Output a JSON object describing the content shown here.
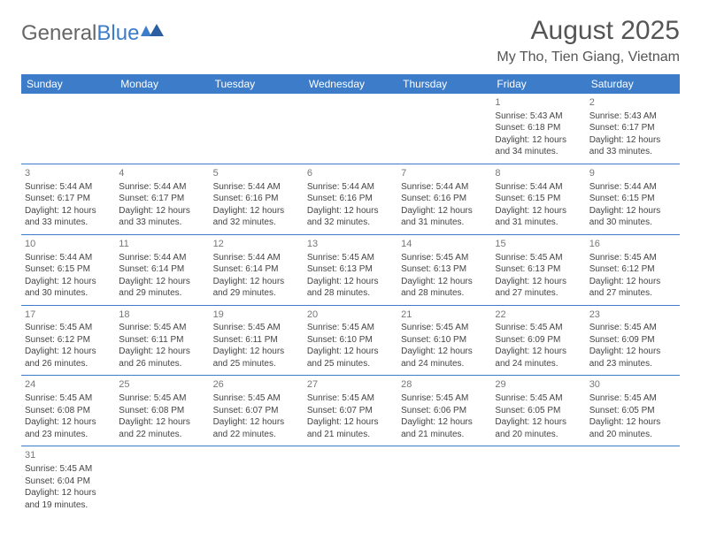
{
  "logo": {
    "text1": "General",
    "text2": "Blue"
  },
  "title": "August 2025",
  "location": "My Tho, Tien Giang, Vietnam",
  "colors": {
    "accent": "#3d7cc9",
    "text": "#444",
    "header_text": "#ffffff"
  },
  "weekdays": [
    "Sunday",
    "Monday",
    "Tuesday",
    "Wednesday",
    "Thursday",
    "Friday",
    "Saturday"
  ],
  "weeks": [
    [
      null,
      null,
      null,
      null,
      null,
      {
        "n": "1",
        "sr": "5:43 AM",
        "ss": "6:18 PM",
        "dl": "12 hours and 34 minutes."
      },
      {
        "n": "2",
        "sr": "5:43 AM",
        "ss": "6:17 PM",
        "dl": "12 hours and 33 minutes."
      }
    ],
    [
      {
        "n": "3",
        "sr": "5:44 AM",
        "ss": "6:17 PM",
        "dl": "12 hours and 33 minutes."
      },
      {
        "n": "4",
        "sr": "5:44 AM",
        "ss": "6:17 PM",
        "dl": "12 hours and 33 minutes."
      },
      {
        "n": "5",
        "sr": "5:44 AM",
        "ss": "6:16 PM",
        "dl": "12 hours and 32 minutes."
      },
      {
        "n": "6",
        "sr": "5:44 AM",
        "ss": "6:16 PM",
        "dl": "12 hours and 32 minutes."
      },
      {
        "n": "7",
        "sr": "5:44 AM",
        "ss": "6:16 PM",
        "dl": "12 hours and 31 minutes."
      },
      {
        "n": "8",
        "sr": "5:44 AM",
        "ss": "6:15 PM",
        "dl": "12 hours and 31 minutes."
      },
      {
        "n": "9",
        "sr": "5:44 AM",
        "ss": "6:15 PM",
        "dl": "12 hours and 30 minutes."
      }
    ],
    [
      {
        "n": "10",
        "sr": "5:44 AM",
        "ss": "6:15 PM",
        "dl": "12 hours and 30 minutes."
      },
      {
        "n": "11",
        "sr": "5:44 AM",
        "ss": "6:14 PM",
        "dl": "12 hours and 29 minutes."
      },
      {
        "n": "12",
        "sr": "5:44 AM",
        "ss": "6:14 PM",
        "dl": "12 hours and 29 minutes."
      },
      {
        "n": "13",
        "sr": "5:45 AM",
        "ss": "6:13 PM",
        "dl": "12 hours and 28 minutes."
      },
      {
        "n": "14",
        "sr": "5:45 AM",
        "ss": "6:13 PM",
        "dl": "12 hours and 28 minutes."
      },
      {
        "n": "15",
        "sr": "5:45 AM",
        "ss": "6:13 PM",
        "dl": "12 hours and 27 minutes."
      },
      {
        "n": "16",
        "sr": "5:45 AM",
        "ss": "6:12 PM",
        "dl": "12 hours and 27 minutes."
      }
    ],
    [
      {
        "n": "17",
        "sr": "5:45 AM",
        "ss": "6:12 PM",
        "dl": "12 hours and 26 minutes."
      },
      {
        "n": "18",
        "sr": "5:45 AM",
        "ss": "6:11 PM",
        "dl": "12 hours and 26 minutes."
      },
      {
        "n": "19",
        "sr": "5:45 AM",
        "ss": "6:11 PM",
        "dl": "12 hours and 25 minutes."
      },
      {
        "n": "20",
        "sr": "5:45 AM",
        "ss": "6:10 PM",
        "dl": "12 hours and 25 minutes."
      },
      {
        "n": "21",
        "sr": "5:45 AM",
        "ss": "6:10 PM",
        "dl": "12 hours and 24 minutes."
      },
      {
        "n": "22",
        "sr": "5:45 AM",
        "ss": "6:09 PM",
        "dl": "12 hours and 24 minutes."
      },
      {
        "n": "23",
        "sr": "5:45 AM",
        "ss": "6:09 PM",
        "dl": "12 hours and 23 minutes."
      }
    ],
    [
      {
        "n": "24",
        "sr": "5:45 AM",
        "ss": "6:08 PM",
        "dl": "12 hours and 23 minutes."
      },
      {
        "n": "25",
        "sr": "5:45 AM",
        "ss": "6:08 PM",
        "dl": "12 hours and 22 minutes."
      },
      {
        "n": "26",
        "sr": "5:45 AM",
        "ss": "6:07 PM",
        "dl": "12 hours and 22 minutes."
      },
      {
        "n": "27",
        "sr": "5:45 AM",
        "ss": "6:07 PM",
        "dl": "12 hours and 21 minutes."
      },
      {
        "n": "28",
        "sr": "5:45 AM",
        "ss": "6:06 PM",
        "dl": "12 hours and 21 minutes."
      },
      {
        "n": "29",
        "sr": "5:45 AM",
        "ss": "6:05 PM",
        "dl": "12 hours and 20 minutes."
      },
      {
        "n": "30",
        "sr": "5:45 AM",
        "ss": "6:05 PM",
        "dl": "12 hours and 20 minutes."
      }
    ],
    [
      {
        "n": "31",
        "sr": "5:45 AM",
        "ss": "6:04 PM",
        "dl": "12 hours and 19 minutes."
      },
      null,
      null,
      null,
      null,
      null,
      null
    ]
  ],
  "labels": {
    "sunrise": "Sunrise: ",
    "sunset": "Sunset: ",
    "daylight": "Daylight: "
  }
}
